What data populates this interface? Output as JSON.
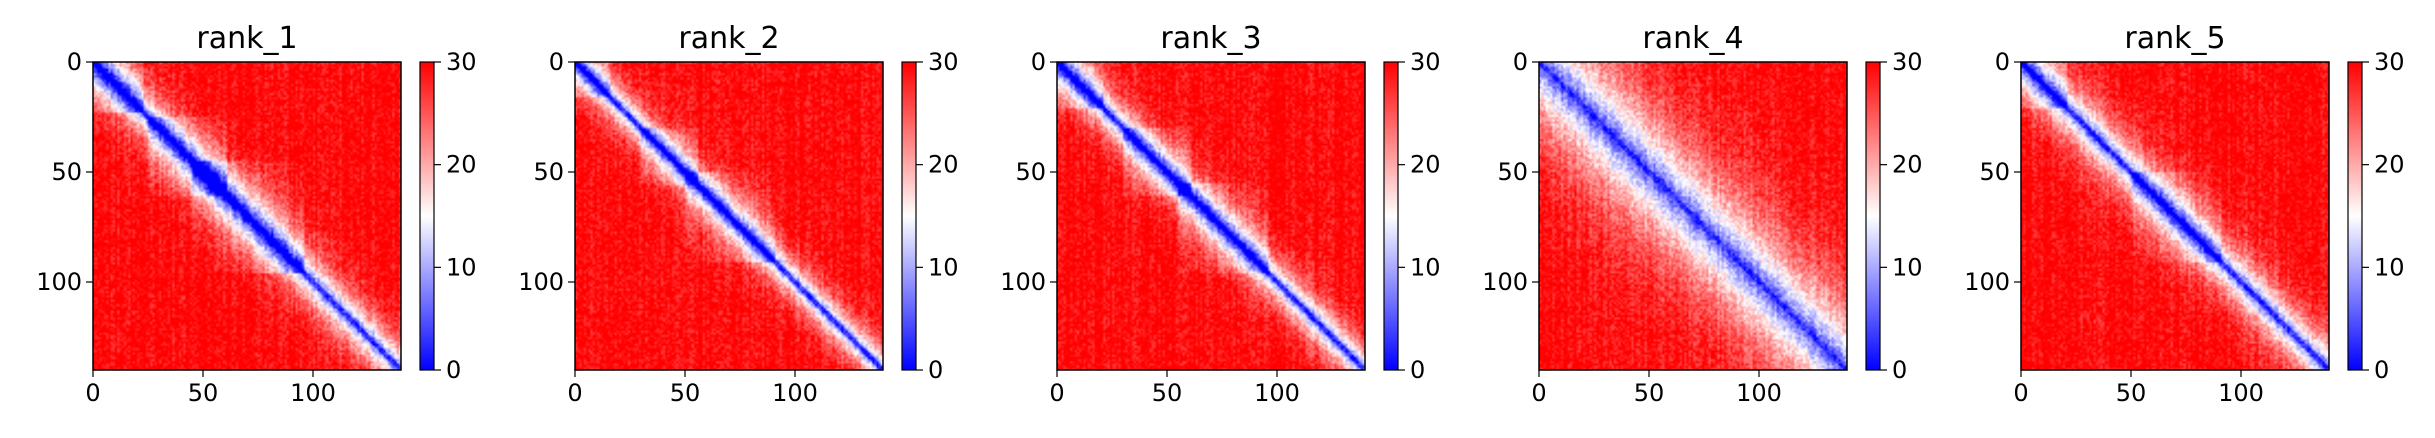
{
  "chart_data": [
    {
      "type": "heatmap",
      "title": "rank_1",
      "xlabel": "",
      "ylabel": "",
      "matrix_size": 140,
      "xlim": [
        0,
        140
      ],
      "ylim": [
        140,
        0
      ],
      "x_ticks": [
        "0",
        "50",
        "100"
      ],
      "y_ticks": [
        "0",
        "50",
        "100"
      ],
      "colorbar": {
        "range": [
          0,
          30
        ],
        "ticks": [
          "0",
          "10",
          "20",
          "30"
        ],
        "colormap": "bwr",
        "colors": [
          "#0000ff",
          "#ffffff",
          "#ff0000"
        ]
      },
      "pattern": {
        "diag_width": 5,
        "spread": 9,
        "blocks": [
          [
            0,
            22,
            9
          ],
          [
            25,
            60,
            8
          ],
          [
            45,
            95,
            9
          ]
        ]
      }
    },
    {
      "type": "heatmap",
      "title": "rank_2",
      "xlabel": "",
      "ylabel": "",
      "matrix_size": 140,
      "xlim": [
        0,
        140
      ],
      "ylim": [
        140,
        0
      ],
      "x_ticks": [
        "0",
        "50",
        "100"
      ],
      "y_ticks": [
        "0",
        "50",
        "100"
      ],
      "colorbar": {
        "range": [
          0,
          30
        ],
        "ticks": [
          "0",
          "10",
          "20",
          "30"
        ],
        "colormap": "bwr",
        "colors": [
          "#0000ff",
          "#ffffff",
          "#ff0000"
        ]
      },
      "pattern": {
        "diag_width": 5,
        "spread": 7,
        "blocks": [
          [
            0,
            15,
            7
          ],
          [
            30,
            55,
            6
          ],
          [
            50,
            90,
            7
          ]
        ]
      }
    },
    {
      "type": "heatmap",
      "title": "rank_3",
      "xlabel": "",
      "ylabel": "",
      "matrix_size": 140,
      "xlim": [
        0,
        140
      ],
      "ylim": [
        140,
        0
      ],
      "x_ticks": [
        "0",
        "50",
        "100"
      ],
      "y_ticks": [
        "0",
        "50",
        "100"
      ],
      "colorbar": {
        "range": [
          0,
          30
        ],
        "ticks": [
          "0",
          "10",
          "20",
          "30"
        ],
        "colormap": "bwr",
        "colors": [
          "#0000ff",
          "#ffffff",
          "#ff0000"
        ]
      },
      "pattern": {
        "diag_width": 5,
        "spread": 8,
        "blocks": [
          [
            0,
            20,
            8
          ],
          [
            30,
            60,
            7
          ],
          [
            55,
            95,
            7
          ]
        ]
      }
    },
    {
      "type": "heatmap",
      "title": "rank_4",
      "xlabel": "",
      "ylabel": "",
      "matrix_size": 140,
      "xlim": [
        0,
        140
      ],
      "ylim": [
        140,
        0
      ],
      "x_ticks": [
        "0",
        "50",
        "100"
      ],
      "y_ticks": [
        "0",
        "50",
        "100"
      ],
      "colorbar": {
        "range": [
          0,
          30
        ],
        "ticks": [
          "0",
          "10",
          "20",
          "30"
        ],
        "colormap": "bwr",
        "colors": [
          "#0000ff",
          "#ffffff",
          "#ff0000"
        ]
      },
      "pattern": {
        "diag_width": 4,
        "spread": 22,
        "blocks": []
      }
    },
    {
      "type": "heatmap",
      "title": "rank_5",
      "xlabel": "",
      "ylabel": "",
      "matrix_size": 140,
      "xlim": [
        0,
        140
      ],
      "ylim": [
        140,
        0
      ],
      "x_ticks": [
        "0",
        "50",
        "100"
      ],
      "y_ticks": [
        "0",
        "50",
        "100"
      ],
      "colorbar": {
        "range": [
          0,
          30
        ],
        "ticks": [
          "0",
          "10",
          "20",
          "30"
        ],
        "colormap": "bwr",
        "colors": [
          "#0000ff",
          "#ffffff",
          "#ff0000"
        ]
      },
      "pattern": {
        "diag_width": 5,
        "spread": 10,
        "blocks": [
          [
            0,
            20,
            6
          ],
          [
            50,
            90,
            6
          ]
        ]
      }
    }
  ]
}
